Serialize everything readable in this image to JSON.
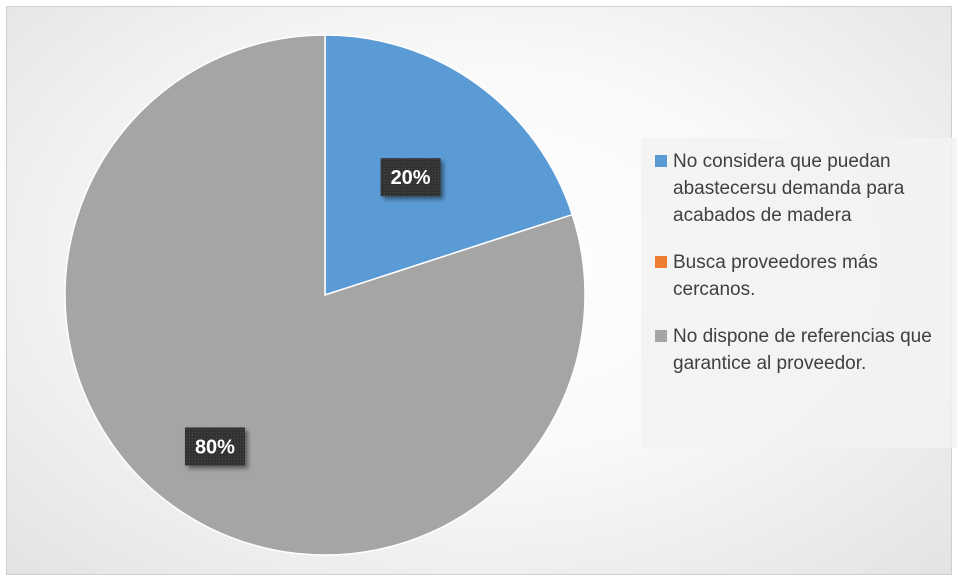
{
  "chart_data": {
    "type": "pie",
    "title": "",
    "categories": [
      " No considera que puedan abastecersu demanda para acabados de madera",
      "Busca proveedores más cercanos.",
      "No dispone de referencias que garantice al proveedor."
    ],
    "values": [
      20,
      0,
      80
    ],
    "data_labels": [
      "20%",
      "",
      "80%"
    ],
    "colors": [
      "#5b9bd5",
      "#ed7d31",
      "#a5a5a5"
    ],
    "legend_position": "right",
    "start_angle_deg": 0,
    "direction": "clockwise"
  }
}
